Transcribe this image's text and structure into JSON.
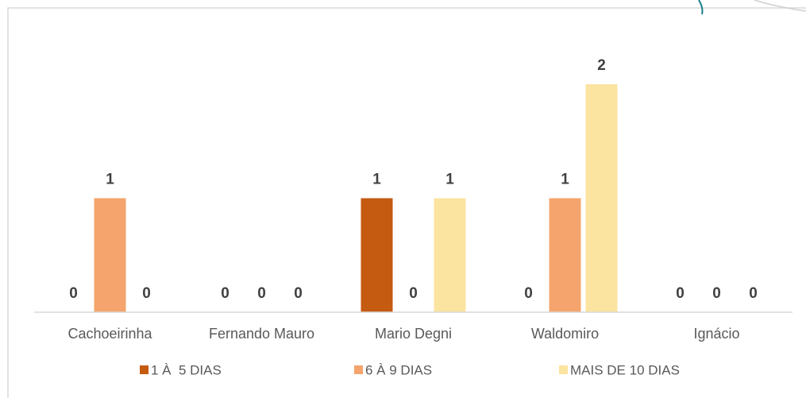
{
  "chart_data": {
    "type": "bar",
    "categories": [
      "Cachoeirinha",
      "Fernando Mauro",
      "Mario Degni",
      "Waldomiro",
      "Ignácio"
    ],
    "series": [
      {
        "name": "1 À  5 DIAS",
        "color": "#c55a11",
        "values": [
          0,
          0,
          1,
          0,
          0
        ]
      },
      {
        "name": "6 À 9 DIAS",
        "color": "#f4a46c",
        "values": [
          1,
          0,
          0,
          1,
          0
        ]
      },
      {
        "name": "MAIS DE 10 DIAS",
        "color": "#fbe3a0",
        "values": [
          0,
          0,
          1,
          2,
          0
        ]
      }
    ],
    "legend": "bottom"
  }
}
